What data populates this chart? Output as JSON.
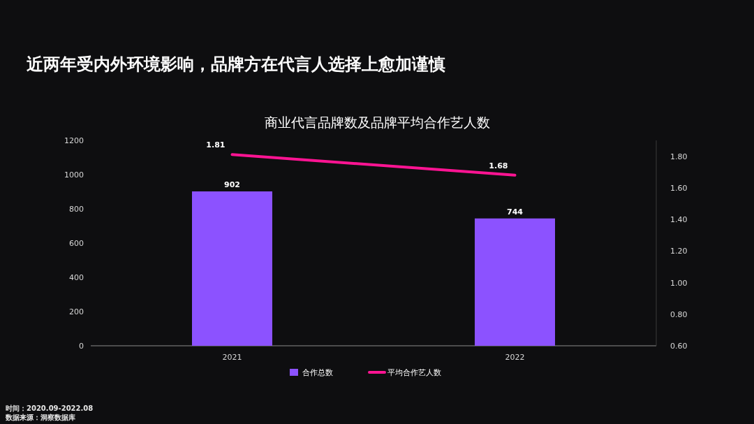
{
  "chart_data": {
    "type": "bar",
    "title": "近两年受内外环境影响，品牌方在代言人选择上愈加谨慎",
    "subtitle": "商业代言品牌数及品牌平均合作艺人数",
    "categories": [
      "2021",
      "2022"
    ],
    "series": [
      {
        "name": "合作总数",
        "color": "#8c52ff",
        "values": [
          902,
          744
        ]
      },
      {
        "name": "平均合作艺人数",
        "type": "line",
        "axis": "y2",
        "color": "#ff1493",
        "values": [
          1.81,
          1.68
        ]
      }
    ],
    "ylim": [
      0,
      1200
    ],
    "yticks": [
      0,
      200,
      400,
      600,
      800,
      1000,
      1200
    ],
    "y2lim": [
      0.6,
      1.9
    ],
    "y2ticks": [
      {
        "value": 0.6,
        "label": "0.60"
      },
      {
        "value": 0.8,
        "label": "0.80"
      },
      {
        "value": 1.0,
        "label": "1.00"
      },
      {
        "value": 1.2,
        "label": "1.20"
      },
      {
        "value": 1.4,
        "label": "1.40"
      },
      {
        "value": 1.6,
        "label": "1.60"
      },
      {
        "value": 1.8,
        "label": "1.80"
      }
    ],
    "data_labels": true,
    "legend": "bottom",
    "grid": false,
    "annotations": [
      "时间：2020.09-2022.08",
      "数据来源：洞察数据库"
    ]
  }
}
